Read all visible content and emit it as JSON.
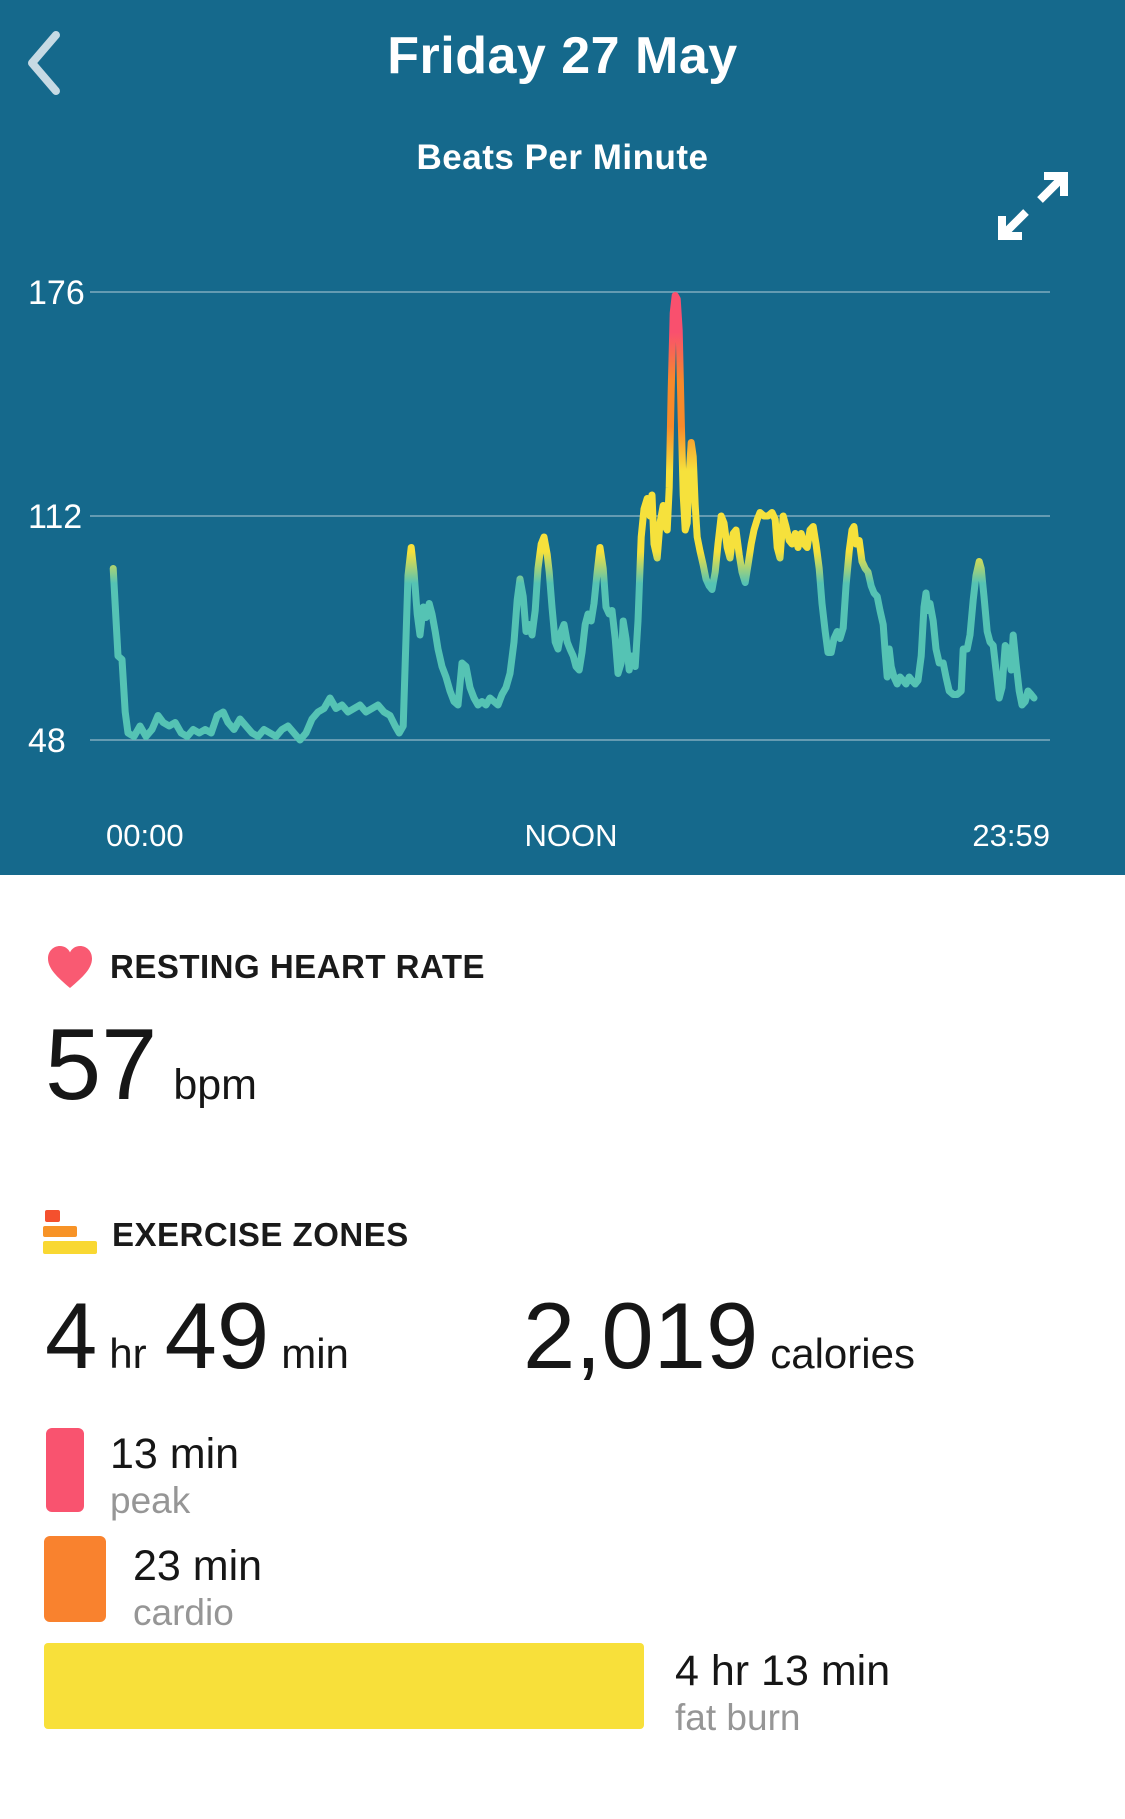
{
  "header": {
    "title": "Friday 27 May"
  },
  "chart": {
    "title": "Beats Per Minute"
  },
  "chart_data": {
    "type": "line",
    "title": "Beats Per Minute",
    "xlabel": "time of day",
    "ylabel": "beats per minute",
    "x_axis": {
      "labels": [
        "00:00",
        "NOON",
        "23:59"
      ],
      "range_hours": [
        0,
        24
      ]
    },
    "y_axis": {
      "ticks": [
        176,
        112,
        48
      ],
      "range": [
        48,
        176
      ]
    },
    "grid": "horizontal-only",
    "background": "#15698C",
    "line_gradient_stops": [
      [
        0,
        "#55C3B4"
      ],
      [
        0.35,
        "#55C3B4"
      ],
      [
        0.42,
        "#F6E13C"
      ],
      [
        0.6,
        "#F6E13C"
      ],
      [
        0.7,
        "#F78A2B"
      ],
      [
        0.8,
        "#F78A2B"
      ],
      [
        0.91,
        "#F9506E"
      ],
      [
        1,
        "#F9506E"
      ]
    ],
    "series": [
      {
        "name": "heart rate (bpm)",
        "points": [
          [
            0.58,
            97
          ],
          [
            0.7,
            72
          ],
          [
            0.8,
            71
          ],
          [
            0.88,
            56
          ],
          [
            0.95,
            50
          ],
          [
            1.1,
            49
          ],
          [
            1.25,
            52
          ],
          [
            1.4,
            49
          ],
          [
            1.55,
            51
          ],
          [
            1.7,
            55
          ],
          [
            1.83,
            53
          ],
          [
            1.98,
            52
          ],
          [
            2.13,
            53
          ],
          [
            2.28,
            50
          ],
          [
            2.43,
            49
          ],
          [
            2.58,
            51
          ],
          [
            2.73,
            50
          ],
          [
            2.88,
            51
          ],
          [
            3.03,
            50
          ],
          [
            3.18,
            55
          ],
          [
            3.33,
            56
          ],
          [
            3.45,
            53
          ],
          [
            3.6,
            51
          ],
          [
            3.75,
            54
          ],
          [
            3.9,
            52
          ],
          [
            4.05,
            50
          ],
          [
            4.2,
            49
          ],
          [
            4.35,
            51
          ],
          [
            4.5,
            50
          ],
          [
            4.65,
            49
          ],
          [
            4.8,
            51
          ],
          [
            4.95,
            52
          ],
          [
            5.1,
            50
          ],
          [
            5.25,
            48
          ],
          [
            5.4,
            50
          ],
          [
            5.55,
            54
          ],
          [
            5.7,
            56
          ],
          [
            5.85,
            57
          ],
          [
            6.0,
            60
          ],
          [
            6.15,
            57
          ],
          [
            6.3,
            58
          ],
          [
            6.45,
            56
          ],
          [
            6.6,
            57
          ],
          [
            6.75,
            58
          ],
          [
            6.9,
            56
          ],
          [
            7.05,
            57
          ],
          [
            7.2,
            58
          ],
          [
            7.35,
            56
          ],
          [
            7.5,
            55
          ],
          [
            7.63,
            52
          ],
          [
            7.73,
            50
          ],
          [
            7.83,
            52
          ],
          [
            7.88,
            70
          ],
          [
            7.95,
            95
          ],
          [
            8.03,
            103
          ],
          [
            8.1,
            96
          ],
          [
            8.18,
            84
          ],
          [
            8.25,
            78
          ],
          [
            8.33,
            86
          ],
          [
            8.4,
            83
          ],
          [
            8.48,
            87
          ],
          [
            8.55,
            84
          ],
          [
            8.63,
            79
          ],
          [
            8.7,
            74
          ],
          [
            8.8,
            69
          ],
          [
            8.9,
            66
          ],
          [
            9.0,
            62
          ],
          [
            9.1,
            59
          ],
          [
            9.2,
            58
          ],
          [
            9.3,
            70
          ],
          [
            9.4,
            69
          ],
          [
            9.5,
            63
          ],
          [
            9.6,
            60
          ],
          [
            9.7,
            58
          ],
          [
            9.8,
            59
          ],
          [
            9.9,
            58
          ],
          [
            10.0,
            60
          ],
          [
            10.1,
            59
          ],
          [
            10.2,
            58
          ],
          [
            10.3,
            61
          ],
          [
            10.4,
            63
          ],
          [
            10.5,
            67
          ],
          [
            10.6,
            76
          ],
          [
            10.68,
            88
          ],
          [
            10.75,
            94
          ],
          [
            10.83,
            89
          ],
          [
            10.9,
            79
          ],
          [
            10.98,
            81
          ],
          [
            11.05,
            78
          ],
          [
            11.13,
            85
          ],
          [
            11.2,
            97
          ],
          [
            11.28,
            104
          ],
          [
            11.35,
            106
          ],
          [
            11.43,
            101
          ],
          [
            11.48,
            96
          ],
          [
            11.55,
            86
          ],
          [
            11.63,
            76
          ],
          [
            11.7,
            74
          ],
          [
            11.78,
            79
          ],
          [
            11.85,
            81
          ],
          [
            11.93,
            76
          ],
          [
            12.0,
            74
          ],
          [
            12.08,
            72
          ],
          [
            12.15,
            69
          ],
          [
            12.23,
            68
          ],
          [
            12.3,
            73
          ],
          [
            12.38,
            81
          ],
          [
            12.45,
            84
          ],
          [
            12.53,
            82
          ],
          [
            12.6,
            87
          ],
          [
            12.68,
            96
          ],
          [
            12.75,
            103
          ],
          [
            12.83,
            97
          ],
          [
            12.9,
            86
          ],
          [
            12.98,
            84
          ],
          [
            13.05,
            85
          ],
          [
            13.13,
            77
          ],
          [
            13.2,
            67
          ],
          [
            13.28,
            70
          ],
          [
            13.33,
            82
          ],
          [
            13.4,
            77
          ],
          [
            13.48,
            68
          ],
          [
            13.55,
            72
          ],
          [
            13.63,
            69
          ],
          [
            13.7,
            82
          ],
          [
            13.78,
            106
          ],
          [
            13.85,
            114
          ],
          [
            13.93,
            117
          ],
          [
            14.0,
            112
          ],
          [
            14.05,
            118
          ],
          [
            14.1,
            104
          ],
          [
            14.18,
            100
          ],
          [
            14.25,
            110
          ],
          [
            14.33,
            115
          ],
          [
            14.38,
            109
          ],
          [
            14.43,
            108
          ],
          [
            14.48,
            120
          ],
          [
            14.53,
            148
          ],
          [
            14.58,
            170
          ],
          [
            14.63,
            175
          ],
          [
            14.68,
            174
          ],
          [
            14.73,
            165
          ],
          [
            14.78,
            140
          ],
          [
            14.83,
            118
          ],
          [
            14.88,
            108
          ],
          [
            14.93,
            110
          ],
          [
            14.98,
            124
          ],
          [
            15.03,
            133
          ],
          [
            15.08,
            129
          ],
          [
            15.13,
            115
          ],
          [
            15.18,
            106
          ],
          [
            15.25,
            102
          ],
          [
            15.33,
            98
          ],
          [
            15.4,
            94
          ],
          [
            15.48,
            92
          ],
          [
            15.55,
            91
          ],
          [
            15.63,
            96
          ],
          [
            15.7,
            104
          ],
          [
            15.78,
            112
          ],
          [
            15.85,
            110
          ],
          [
            15.93,
            103
          ],
          [
            16.0,
            100
          ],
          [
            16.08,
            107
          ],
          [
            16.15,
            108
          ],
          [
            16.23,
            101
          ],
          [
            16.3,
            96
          ],
          [
            16.38,
            93
          ],
          [
            16.45,
            98
          ],
          [
            16.53,
            104
          ],
          [
            16.6,
            108
          ],
          [
            16.68,
            111
          ],
          [
            16.75,
            113
          ],
          [
            16.85,
            112
          ],
          [
            16.95,
            112
          ],
          [
            17.05,
            113
          ],
          [
            17.13,
            111
          ],
          [
            17.18,
            103
          ],
          [
            17.25,
            100
          ],
          [
            17.33,
            112
          ],
          [
            17.4,
            109
          ],
          [
            17.48,
            105
          ],
          [
            17.55,
            104
          ],
          [
            17.63,
            107
          ],
          [
            17.7,
            103
          ],
          [
            17.78,
            107
          ],
          [
            17.85,
            104
          ],
          [
            17.93,
            103
          ],
          [
            18.0,
            108
          ],
          [
            18.08,
            109
          ],
          [
            18.15,
            104
          ],
          [
            18.23,
            97
          ],
          [
            18.3,
            87
          ],
          [
            18.38,
            79
          ],
          [
            18.45,
            73
          ],
          [
            18.53,
            73
          ],
          [
            18.6,
            77
          ],
          [
            18.68,
            79
          ],
          [
            18.75,
            77
          ],
          [
            18.83,
            80
          ],
          [
            18.9,
            92
          ],
          [
            18.98,
            102
          ],
          [
            19.05,
            108
          ],
          [
            19.1,
            109
          ],
          [
            19.15,
            104
          ],
          [
            19.23,
            105
          ],
          [
            19.3,
            99
          ],
          [
            19.38,
            97
          ],
          [
            19.45,
            96
          ],
          [
            19.53,
            92
          ],
          [
            19.6,
            90
          ],
          [
            19.68,
            89
          ],
          [
            19.75,
            85
          ],
          [
            19.83,
            81
          ],
          [
            19.88,
            73
          ],
          [
            19.93,
            66
          ],
          [
            19.98,
            74
          ],
          [
            20.03,
            69
          ],
          [
            20.1,
            66
          ],
          [
            20.18,
            64
          ],
          [
            20.25,
            66
          ],
          [
            20.33,
            65
          ],
          [
            20.4,
            64
          ],
          [
            20.48,
            66
          ],
          [
            20.55,
            65
          ],
          [
            20.63,
            64
          ],
          [
            20.7,
            65
          ],
          [
            20.78,
            72
          ],
          [
            20.85,
            86
          ],
          [
            20.9,
            90
          ],
          [
            20.95,
            85
          ],
          [
            21.0,
            87
          ],
          [
            21.08,
            82
          ],
          [
            21.15,
            74
          ],
          [
            21.23,
            70
          ],
          [
            21.33,
            70
          ],
          [
            21.4,
            66
          ],
          [
            21.48,
            62
          ],
          [
            21.58,
            61
          ],
          [
            21.68,
            61
          ],
          [
            21.78,
            62
          ],
          [
            21.83,
            74
          ],
          [
            21.93,
            74
          ],
          [
            22.0,
            78
          ],
          [
            22.08,
            88
          ],
          [
            22.15,
            95
          ],
          [
            22.23,
            99
          ],
          [
            22.28,
            97
          ],
          [
            22.35,
            89
          ],
          [
            22.43,
            79
          ],
          [
            22.5,
            76
          ],
          [
            22.58,
            75
          ],
          [
            22.65,
            68
          ],
          [
            22.73,
            60
          ],
          [
            22.8,
            63
          ],
          [
            22.88,
            75
          ],
          [
            22.95,
            74
          ],
          [
            23.03,
            68
          ],
          [
            23.08,
            78
          ],
          [
            23.15,
            70
          ],
          [
            23.23,
            62
          ],
          [
            23.3,
            58
          ],
          [
            23.38,
            59
          ],
          [
            23.45,
            62
          ],
          [
            23.53,
            61
          ],
          [
            23.6,
            60
          ]
        ]
      }
    ]
  },
  "resting_heart_rate": {
    "label": "RESTING HEART RATE",
    "value": "57",
    "unit": "bpm"
  },
  "exercise_zones": {
    "label": "EXERCISE ZONES",
    "duration": {
      "parts": [
        {
          "value": "4",
          "unit": "hr"
        },
        {
          "value": "49",
          "unit": "min"
        }
      ]
    },
    "calories": {
      "value": "2,019",
      "unit": "calories"
    },
    "zones": [
      {
        "name": "peak",
        "duration": "13 min",
        "color": "#F9536F"
      },
      {
        "name": "cardio",
        "duration": "23 min",
        "color": "#F9822E"
      },
      {
        "name": "fat burn",
        "duration": "4 hr 13 min",
        "color": "#F8E03A"
      }
    ]
  },
  "colors": {
    "panel_background": "#15698C",
    "line_default": "#55C3B4",
    "line_fat_burn": "#F6E13C",
    "line_cardio": "#F78A2B",
    "line_peak": "#F9506E",
    "heart_icon": "#F95A72",
    "text_dark": "#161616",
    "text_gray": "#969696",
    "gridline": "rgba(255,255,255,0.45)"
  }
}
